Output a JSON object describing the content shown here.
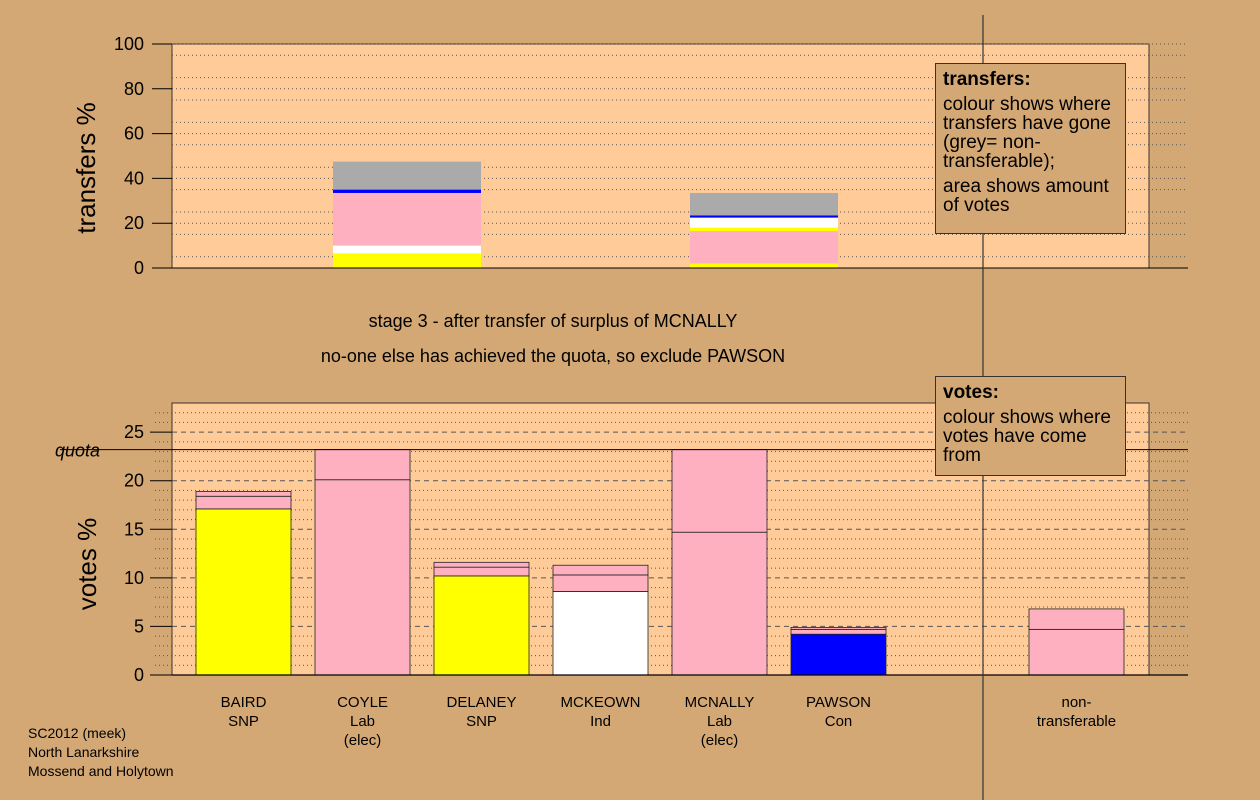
{
  "messages": {
    "stage": "stage 3 - after transfer of surplus of MCNALLY",
    "action": "no-one else has achieved the quota, so exclude PAWSON"
  },
  "legend_transfers": {
    "heading": "transfers:",
    "text1": "colour shows where transfers have gone (grey= non-transferable);",
    "text2": "area shows amount of votes"
  },
  "legend_votes": {
    "heading": "votes:",
    "text1": "colour shows where votes have come from"
  },
  "footer": {
    "line1": "SC2012 (meek)",
    "line2": "North Lanarkshire",
    "line3": "Mossend and Holytown"
  },
  "colors": {
    "background": "#d4a874",
    "plot_bg": "#ffcc99",
    "snp": "#ffff00",
    "lab": "#ffb0c0",
    "ind": "#ffffff",
    "con": "#0000ff",
    "nontransferable": "#aaaaaa"
  },
  "chart_data": [
    {
      "type": "bar",
      "stacked": true,
      "ylabel": "transfers %",
      "ylim": [
        0,
        100
      ],
      "yticks": [
        0,
        20,
        40,
        60,
        80,
        100
      ],
      "grid": "dotted",
      "bars": [
        {
          "slot": 2,
          "segments": [
            {
              "color": "#ffff00",
              "value": 6.5
            },
            {
              "color": "#ffffff",
              "value": 3.5
            },
            {
              "color": "#ffb0c0",
              "value": 23.5
            },
            {
              "color": "#0000ff",
              "value": 1.5
            },
            {
              "color": "#aaaaaa",
              "value": 12.5
            }
          ]
        },
        {
          "slot": 5,
          "segments": [
            {
              "color": "#ffff00",
              "value": 2
            },
            {
              "color": "#ffb0c0",
              "value": 14.5
            },
            {
              "color": "#ffff00",
              "value": 1.5
            },
            {
              "color": "#ffffff",
              "value": 4.5
            },
            {
              "color": "#0000ff",
              "value": 1
            },
            {
              "color": "#aaaaaa",
              "value": 10
            }
          ]
        }
      ]
    },
    {
      "type": "bar",
      "stacked": true,
      "ylabel": "votes %",
      "ylim": [
        0,
        28
      ],
      "yticks": [
        0,
        5,
        10,
        15,
        20,
        25
      ],
      "grid": "dotted/dashed",
      "quota": 23.2,
      "quota_label": "quota",
      "categories": [
        {
          "name": "BAIRD",
          "party": "SNP",
          "note": ""
        },
        {
          "name": "COYLE",
          "party": "Lab",
          "note": "(elec)"
        },
        {
          "name": "DELANEY",
          "party": "SNP",
          "note": ""
        },
        {
          "name": "MCKEOWN",
          "party": "Ind",
          "note": ""
        },
        {
          "name": "MCNALLY",
          "party": "Lab",
          "note": "(elec)"
        },
        {
          "name": "PAWSON",
          "party": "Con",
          "note": ""
        }
      ],
      "nontransferable_label": [
        "non-",
        "transferable"
      ],
      "bars": [
        {
          "slot": 1,
          "segments": [
            {
              "color": "#ffff00",
              "value": 17.1
            },
            {
              "color": "#ffb0c0",
              "value": 1.3
            },
            {
              "color": "#ffb0c0",
              "value": 0.5
            }
          ]
        },
        {
          "slot": 2,
          "segments": [
            {
              "color": "#ffb0c0",
              "value": 20.1
            },
            {
              "color": "#ffb0c0",
              "value": 3.1
            }
          ]
        },
        {
          "slot": 3,
          "segments": [
            {
              "color": "#ffff00",
              "value": 10.2
            },
            {
              "color": "#ffb0c0",
              "value": 0.9
            },
            {
              "color": "#ffb0c0",
              "value": 0.5
            }
          ]
        },
        {
          "slot": 4,
          "segments": [
            {
              "color": "#ffffff",
              "value": 8.6
            },
            {
              "color": "#ffb0c0",
              "value": 1.7
            },
            {
              "color": "#ffb0c0",
              "value": 1.0
            }
          ]
        },
        {
          "slot": 5,
          "segments": [
            {
              "color": "#ffb0c0",
              "value": 14.7
            },
            {
              "color": "#ffb0c0",
              "value": 8.5
            }
          ]
        },
        {
          "slot": 6,
          "segments": [
            {
              "color": "#0000ff",
              "value": 4.2
            },
            {
              "color": "#ffb0c0",
              "value": 0.5
            },
            {
              "color": "#ffb0c0",
              "value": 0.2
            }
          ]
        },
        {
          "slot": 8,
          "segments": [
            {
              "color": "#ffb0c0",
              "value": 4.7
            },
            {
              "color": "#ffb0c0",
              "value": 2.1
            }
          ]
        }
      ]
    }
  ]
}
